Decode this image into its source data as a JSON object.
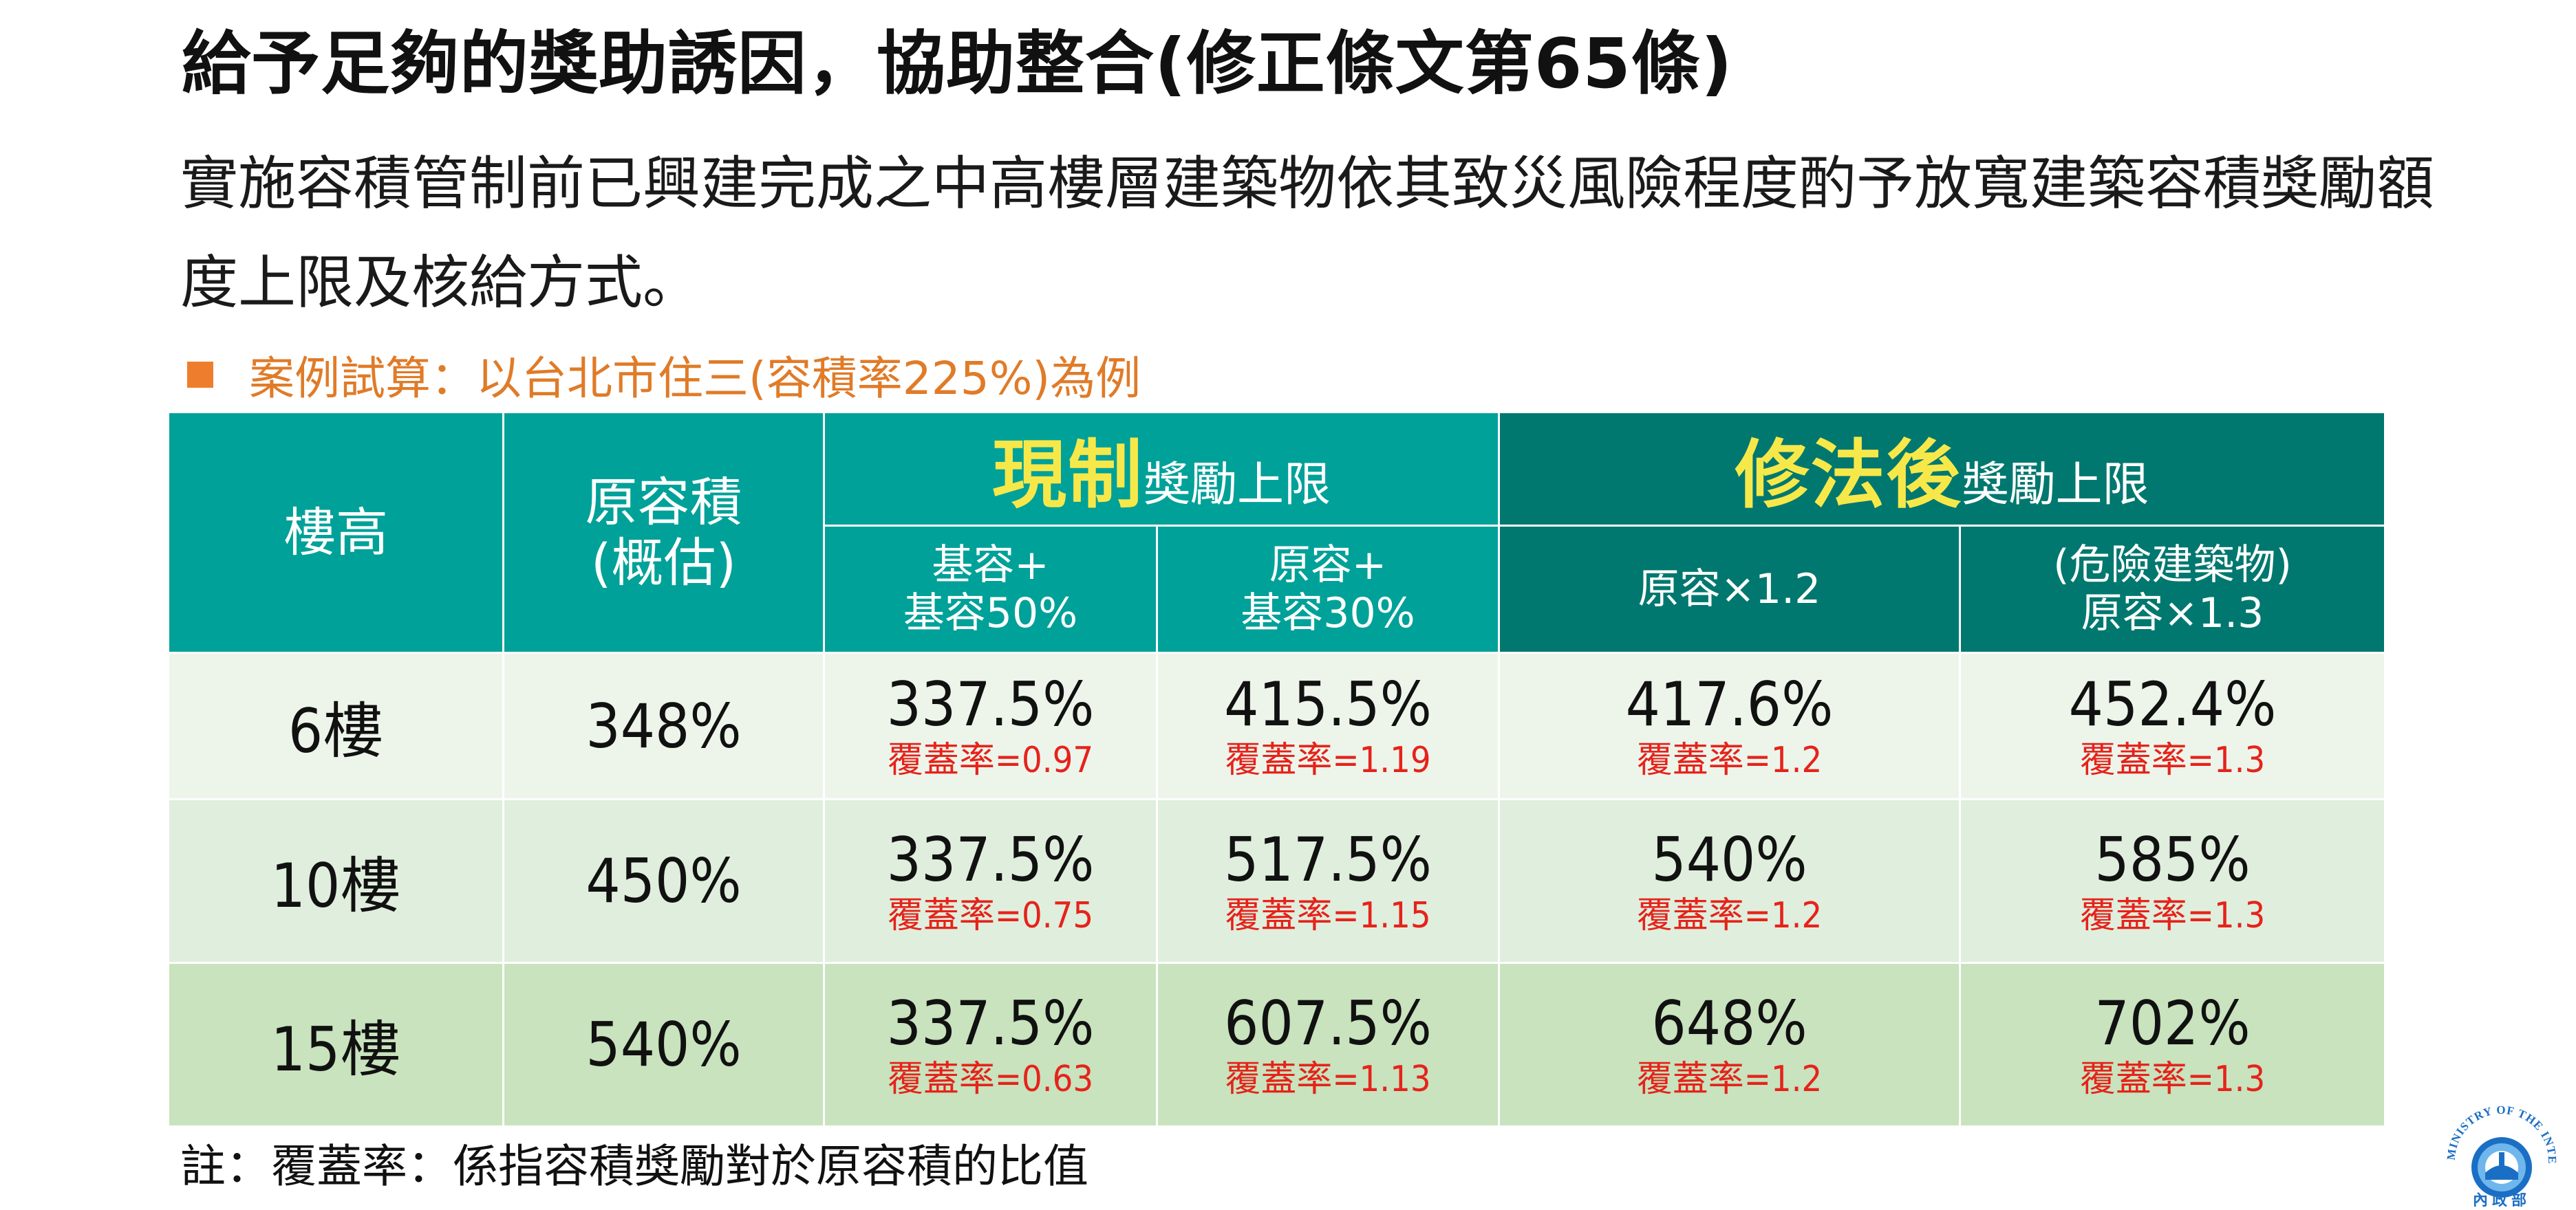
{
  "title": "給予足夠的獎助誘因，協助整合(修正條文第65條)",
  "intro": "實施容積管制前已興建完成之中高樓層建築物依其致災風險程度酌予放寬建築容積獎勵額度上限及核給方式。",
  "case_example": "案例試算：以台北市住三(容積率225%)為例",
  "table": {
    "headers": {
      "floor": "樓高",
      "original_line1": "原容積",
      "original_line2": "(概估)",
      "current_big": "現制",
      "current_small": "獎勵上限",
      "amended_big": "修法後",
      "amended_small": "獎勵上限",
      "sub1_line1": "基容+",
      "sub1_line2": "基容50%",
      "sub2_line1": "原容+",
      "sub2_line2": "基容30%",
      "sub3": "原容×1.2",
      "sub4_line1": "(危險建築物)",
      "sub4_line2": "原容×1.3"
    },
    "rows": [
      {
        "floor": "6樓",
        "original": "348%",
        "current_a": "337.5%",
        "current_a_cov": "覆蓋率=0.97",
        "current_b": "415.5%",
        "current_b_cov": "覆蓋率=1.19",
        "amended_a": "417.6%",
        "amended_a_cov": "覆蓋率=1.2",
        "amended_b": "452.4%",
        "amended_b_cov": "覆蓋率=1.3"
      },
      {
        "floor": "10樓",
        "original": "450%",
        "current_a": "337.5%",
        "current_a_cov": "覆蓋率=0.75",
        "current_b": "517.5%",
        "current_b_cov": "覆蓋率=1.15",
        "amended_a": "540%",
        "amended_a_cov": "覆蓋率=1.2",
        "amended_b": "585%",
        "amended_b_cov": "覆蓋率=1.3"
      },
      {
        "floor": "15樓",
        "original": "540%",
        "current_a": "337.5%",
        "current_a_cov": "覆蓋率=0.63",
        "current_b": "607.5%",
        "current_b_cov": "覆蓋率=1.13",
        "amended_a": "648%",
        "amended_a_cov": "覆蓋率=1.2",
        "amended_b": "702%",
        "amended_b_cov": "覆蓋率=1.3"
      }
    ]
  },
  "note": "註：覆蓋率：係指容積獎勵對於原容積的比值",
  "logo": {
    "ring_text": "MINISTRY OF THE INTERIOR",
    "bottom_text": "內政部",
    "colors": {
      "blue": "#1a6fc4",
      "light_blue": "#6fb6ec"
    }
  },
  "colors": {
    "teal": "#00a199",
    "dark_teal": "#00786f",
    "highlight_yellow": "#f7e84a",
    "orange": "#ee7e2d",
    "red": "#e5231b"
  }
}
